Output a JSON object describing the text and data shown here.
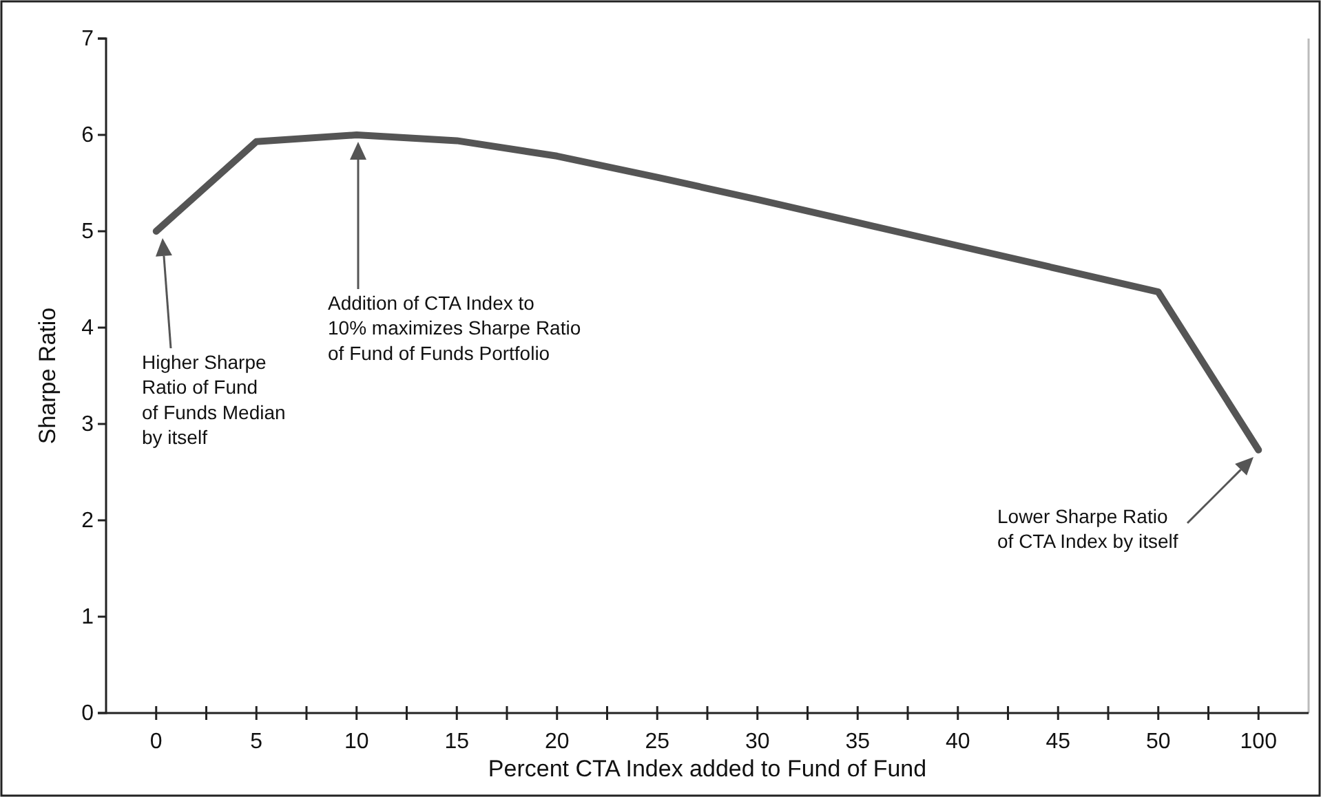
{
  "chart_data": {
    "type": "line",
    "xlabel": "Percent CTA Index added to Fund of Fund",
    "ylabel": "Sharpe Ratio",
    "categories": [
      "0",
      "5",
      "10",
      "15",
      "20",
      "25",
      "30",
      "35",
      "40",
      "45",
      "50",
      "100"
    ],
    "series": [
      {
        "color": "#555555",
        "values": [
          5.0,
          5.93,
          6.0,
          5.94,
          5.78,
          5.56,
          5.33,
          5.09,
          4.85,
          4.61,
          4.37,
          2.73
        ]
      }
    ],
    "ylim": [
      0,
      7
    ],
    "yticks": [
      0,
      1,
      2,
      3,
      4,
      5,
      6,
      7
    ],
    "grid": false,
    "marker": "none",
    "line_style": "solid",
    "annotations": [
      "Higher Sharpe\nRatio of Fund\nof Funds Median\nby itself",
      "Addition of CTA Index to\n10% maximizes Sharpe Ratio\nof Fund of Funds Portfolio",
      "Lower Sharpe Ratio\nof CTA Index by itself"
    ]
  }
}
